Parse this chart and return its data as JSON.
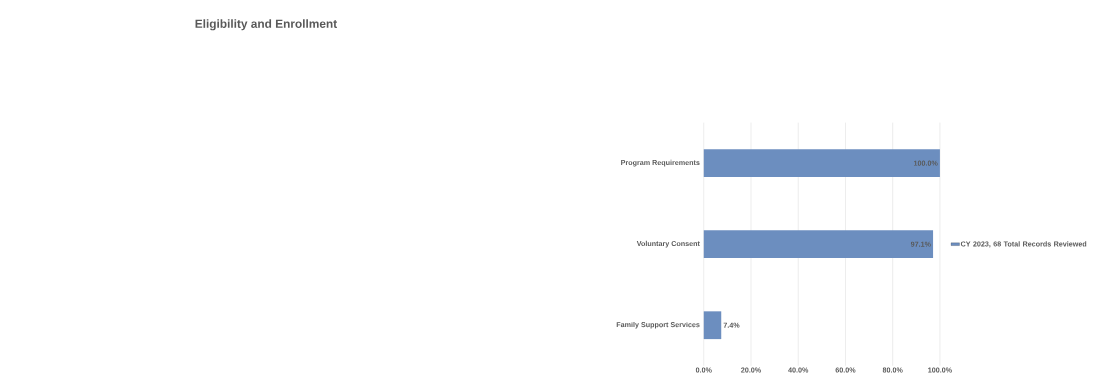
{
  "chart_data": {
    "type": "bar",
    "orientation": "horizontal",
    "title": "Eligibility and Enrollment",
    "categories": [
      "Program Requirements",
      "Voluntary Consent",
      "Family Support Services"
    ],
    "series": [
      {
        "name": "CY 2023, 68 Total Records Reviewed",
        "color": "#6c8ebf",
        "values": [
          100,
          97.1,
          7.4
        ],
        "value_labels": [
          "100.0%",
          "97.1%",
          "7.4%"
        ]
      }
    ],
    "xlim": [
      0,
      100
    ],
    "xticks": [
      {
        "value": 0,
        "label": "0.0%"
      },
      {
        "value": 20,
        "label": "20.0%"
      },
      {
        "value": 40,
        "label": "40.0%"
      },
      {
        "value": 60,
        "label": "60.0%"
      },
      {
        "value": 80,
        "label": "80.0%"
      },
      {
        "value": 100,
        "label": "100.0%"
      }
    ],
    "grid": "x",
    "legend": "right"
  }
}
